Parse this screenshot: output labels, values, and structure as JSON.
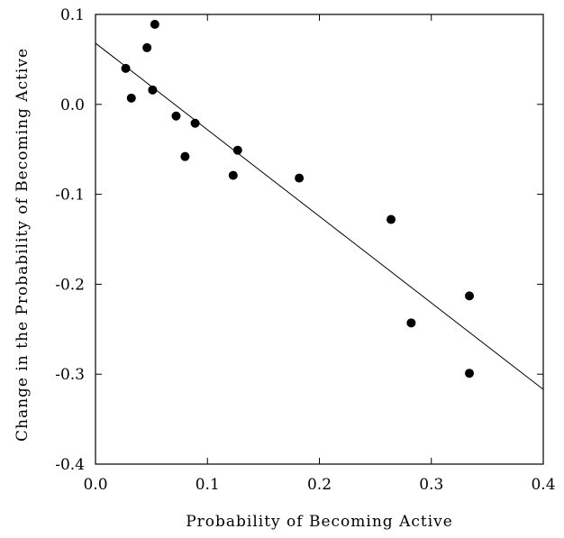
{
  "chart_data": {
    "type": "scatter",
    "title": "",
    "xlabel": "Probability of Becoming Active",
    "ylabel": "Change in the Probability of Becoming Active",
    "xlim": [
      0.0,
      0.4
    ],
    "ylim": [
      -0.4,
      0.1
    ],
    "x_ticks": [
      "0.0",
      "0.1",
      "0.2",
      "0.3",
      "0.4"
    ],
    "x_tick_values": [
      0.0,
      0.1,
      0.2,
      0.3,
      0.4
    ],
    "y_ticks": [
      "0.1",
      "0.0",
      "-0.1",
      "-0.2",
      "-0.3",
      "-0.4"
    ],
    "y_tick_values": [
      0.1,
      0.0,
      -0.1,
      -0.2,
      -0.3,
      -0.4
    ],
    "grid": false,
    "legend": "none",
    "points": [
      {
        "x": 0.027,
        "y": 0.04
      },
      {
        "x": 0.032,
        "y": 0.007
      },
      {
        "x": 0.046,
        "y": 0.063
      },
      {
        "x": 0.051,
        "y": 0.016
      },
      {
        "x": 0.053,
        "y": 0.089
      },
      {
        "x": 0.072,
        "y": -0.013
      },
      {
        "x": 0.08,
        "y": -0.058
      },
      {
        "x": 0.089,
        "y": -0.021
      },
      {
        "x": 0.123,
        "y": -0.079
      },
      {
        "x": 0.127,
        "y": -0.051
      },
      {
        "x": 0.182,
        "y": -0.082
      },
      {
        "x": 0.264,
        "y": -0.128
      },
      {
        "x": 0.282,
        "y": -0.243
      },
      {
        "x": 0.334,
        "y": -0.213
      },
      {
        "x": 0.334,
        "y": -0.299
      }
    ],
    "trendline": {
      "type": "linear",
      "x": [
        0.0,
        0.4
      ],
      "y": [
        0.068,
        -0.317
      ]
    },
    "colors": {
      "marker": "#000000",
      "line": "#000000"
    }
  }
}
